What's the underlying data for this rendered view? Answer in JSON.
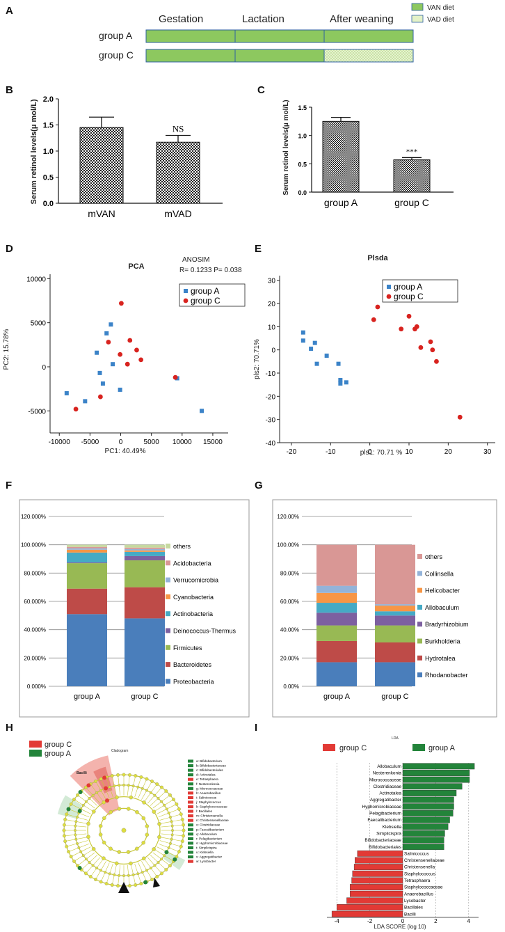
{
  "panel_labels": [
    "A",
    "B",
    "C",
    "D",
    "E",
    "F",
    "G",
    "H",
    "I"
  ],
  "colors": {
    "van": "#8dc85f",
    "vad": "#e4f2c8",
    "border": "#2d5fa0",
    "groupA_marker": "#3b83c8",
    "groupC_marker": "#d8231f",
    "lefse_red": "#e23a35",
    "lefse_green": "#23843a",
    "proteobacteria": "#4a7ebb",
    "bacteroidetes": "#be4b48",
    "firmicutes": "#98b954",
    "deinococcus": "#7d60a0",
    "actinobacteria": "#46aac5",
    "cyanobacteria": "#f79646",
    "verrucomicrobia": "#93b3d9",
    "acidobacteria": "#d99795",
    "others_f": "#c6d9a0",
    "cladogram_node": "#dede40"
  },
  "panel_a": {
    "phases": [
      "Gestation",
      "Lactation",
      "After weaning"
    ],
    "rows": [
      {
        "label": "group A",
        "diets": [
          "VAN",
          "VAN",
          "VAN"
        ]
      },
      {
        "label": "group C",
        "diets": [
          "VAN",
          "VAN",
          "VAD"
        ]
      }
    ],
    "legend": [
      "VAN diet",
      "VAD diet"
    ]
  },
  "chart_data": [
    {
      "id": "B",
      "type": "bar",
      "categories": [
        "mVAN",
        "mVAD"
      ],
      "values": [
        1.45,
        1.17
      ],
      "errors": [
        0.2,
        0.13
      ],
      "annotations": [
        "",
        "NS"
      ],
      "ylabel": "Serum retinol levels(μ mol/L)",
      "yticks": [
        "0.0",
        "0.5",
        "1.0",
        "1.5",
        "2.0"
      ],
      "ylim": [
        0,
        2.0
      ]
    },
    {
      "id": "C",
      "type": "bar",
      "categories": [
        "group A",
        "group C"
      ],
      "values": [
        1.25,
        0.57
      ],
      "errors": [
        0.07,
        0.04
      ],
      "annotations": [
        "",
        "***"
      ],
      "ylabel": "Serum retinol levels(μ mol/L)",
      "yticks": [
        "0.0",
        "0.5",
        "1.0",
        "1.5"
      ],
      "ylim": [
        0,
        1.5
      ]
    },
    {
      "id": "D",
      "type": "scatter",
      "title": "PCA",
      "annotation": [
        "ANOSIM",
        "R= 0.1233  P= 0.038"
      ],
      "xlabel": "PC1: 40.49%",
      "ylabel": "PC2: 15.78%",
      "xticks": [
        "-10000",
        "-5000",
        "0",
        "5000",
        "10000",
        "15000"
      ],
      "yticks": [
        "-5000",
        "0",
        "5000",
        "10000"
      ],
      "xlim": [
        -11500,
        17500
      ],
      "ylim": [
        -7500,
        10500
      ],
      "legend": [
        "group A",
        "group C"
      ],
      "series": [
        {
          "name": "group A",
          "points": [
            [
              -8800,
              -3000
            ],
            [
              -5800,
              -3900
            ],
            [
              -3900,
              1600
            ],
            [
              -3400,
              -700
            ],
            [
              -2900,
              -1900
            ],
            [
              -2300,
              3800
            ],
            [
              -1600,
              4800
            ],
            [
              -1300,
              300
            ],
            [
              -100,
              -2600
            ],
            [
              9200,
              -1300
            ],
            [
              13200,
              -5000
            ]
          ]
        },
        {
          "name": "group C",
          "points": [
            [
              -7300,
              -4800
            ],
            [
              -3300,
              -3400
            ],
            [
              -2000,
              2800
            ],
            [
              -100,
              1400
            ],
            [
              100,
              7200
            ],
            [
              1100,
              300
            ],
            [
              1500,
              3000
            ],
            [
              2600,
              1900
            ],
            [
              3300,
              800
            ],
            [
              8900,
              -1200
            ]
          ]
        }
      ]
    },
    {
      "id": "E",
      "type": "scatter",
      "title": "Plsda",
      "xlabel": "pls1: 70.71 %",
      "ylabel": "pls2: 70.71%",
      "xticks": [
        "-20",
        "-10",
        "0",
        "10",
        "20",
        "30"
      ],
      "yticks": [
        "-40",
        "-30",
        "-20",
        "-10",
        "0",
        "10",
        "20",
        "30"
      ],
      "xlim": [
        -23,
        32
      ],
      "ylim": [
        -40,
        32
      ],
      "legend": [
        "group A",
        "group C"
      ],
      "series": [
        {
          "name": "group A",
          "points": [
            [
              -17,
              7.5
            ],
            [
              -17,
              4
            ],
            [
              -15,
              0.5
            ],
            [
              -14,
              3
            ],
            [
              -13.5,
              -6
            ],
            [
              -11,
              -2.5
            ],
            [
              -8,
              -6
            ],
            [
              -7.5,
              -13
            ],
            [
              -7.5,
              -14.5
            ],
            [
              -6,
              -14
            ]
          ]
        },
        {
          "name": "group C",
          "points": [
            [
              1,
              13
            ],
            [
              2,
              18.5
            ],
            [
              8,
              9
            ],
            [
              10,
              14.5
            ],
            [
              11.5,
              9
            ],
            [
              12,
              10
            ],
            [
              13,
              1
            ],
            [
              15.5,
              3.5
            ],
            [
              16,
              0
            ],
            [
              17,
              -5
            ],
            [
              23,
              -29
            ]
          ]
        }
      ]
    },
    {
      "id": "F",
      "type": "bar",
      "stacked": true,
      "categories": [
        "group A",
        "group C"
      ],
      "yticks": [
        "0.000%",
        "20.000%",
        "40.000%",
        "60.000%",
        "80.000%",
        "100.000%",
        "120.000%"
      ],
      "ylim": [
        0,
        120
      ],
      "legend": [
        "others",
        "Acidobacteria",
        "Verrucomicrobia",
        "Cyanobacteria",
        "Actinobacteria",
        "Deinococcus-Thermus",
        "Firmicutes",
        "Bacteroidetes",
        "Proteobacteria"
      ],
      "series": [
        {
          "name": "Proteobacteria",
          "values": [
            51,
            48
          ]
        },
        {
          "name": "Bacteroidetes",
          "values": [
            18,
            22
          ]
        },
        {
          "name": "Firmicutes",
          "values": [
            18,
            19
          ]
        },
        {
          "name": "Deinococcus-Thermus",
          "values": [
            0.5,
            3
          ]
        },
        {
          "name": "Actinobacteria",
          "values": [
            7,
            3
          ]
        },
        {
          "name": "Cyanobacteria",
          "values": [
            2,
            1
          ]
        },
        {
          "name": "Verrucomicrobia",
          "values": [
            1,
            1
          ]
        },
        {
          "name": "Acidobacteria",
          "values": [
            1,
            1
          ]
        },
        {
          "name": "others",
          "values": [
            1.5,
            2
          ]
        }
      ]
    },
    {
      "id": "G",
      "type": "bar",
      "stacked": true,
      "categories": [
        "group A",
        "group C"
      ],
      "yticks": [
        "0.00%",
        "20.00%",
        "40.00%",
        "60.00%",
        "80.00%",
        "100.00%",
        "120.00%"
      ],
      "ylim": [
        0,
        120
      ],
      "legend": [
        "others",
        "Collinsella",
        "Helicobacter",
        "Allobaculum",
        "Bradyrhizobium",
        "Burkholderia",
        "Hydrotalea",
        "Rhodanobacter"
      ],
      "series": [
        {
          "name": "Rhodanobacter",
          "values": [
            17,
            17
          ]
        },
        {
          "name": "Hydrotalea",
          "values": [
            15,
            14
          ]
        },
        {
          "name": "Burkholderia",
          "values": [
            11,
            12
          ]
        },
        {
          "name": "Bradyrhizobium",
          "values": [
            9,
            7
          ]
        },
        {
          "name": "Allobaculum",
          "values": [
            7,
            3
          ]
        },
        {
          "name": "Helicobacter",
          "values": [
            7,
            4
          ]
        },
        {
          "name": "Collinsella",
          "values": [
            5,
            1
          ]
        },
        {
          "name": "others",
          "values": [
            29,
            42
          ]
        }
      ]
    },
    {
      "id": "I",
      "type": "bar",
      "orientation": "horizontal",
      "title": "LDA",
      "xlabel": "LDA SCORE (log 10)",
      "xticks": [
        "-4",
        "-2",
        "0",
        "2",
        "4"
      ],
      "xlim": [
        -4.6,
        4.6
      ],
      "legend": [
        "group C",
        "group A"
      ],
      "categories": [
        "Allobaculum",
        "Nesterenkonia",
        "Micrococcaceae",
        "Clostridiaceae",
        "Actinotalea",
        "Aggregatibacter",
        "Hyphomicrobiaceae",
        "Pelagibacterium",
        "Faecalibacterium",
        "Klebsiella",
        "Simplicispira",
        "Bifidobacteriaceae",
        "Bifidobacteriales",
        "Salinicoccus",
        "Christensenellaceae",
        "Christensenella",
        "Staphylococcus",
        "Tetrasphaera",
        "Staphylococcaceae",
        "Anaerobacillus",
        "Lysobacter",
        "Bacillales",
        "Bacilli"
      ],
      "values": [
        4.35,
        4.05,
        4.05,
        3.6,
        3.25,
        3.1,
        3.1,
        3.05,
        2.85,
        2.75,
        2.55,
        2.5,
        2.5,
        -2.75,
        -2.9,
        -2.95,
        -3.05,
        -3.1,
        -3.2,
        -3.2,
        -3.4,
        -4.0,
        -4.3
      ]
    }
  ],
  "panel_h": {
    "title": "Cladogram",
    "legend": [
      "group C",
      "group A"
    ],
    "key": [
      {
        "text": "a: Bifidobacterium",
        "group": "A"
      },
      {
        "text": "b: Bifidobacteriaceae",
        "group": "A"
      },
      {
        "text": "c: Bifidobacteriales",
        "group": "A"
      },
      {
        "text": "d: Actinotalea",
        "group": "A"
      },
      {
        "text": "e: Tetrasphaera",
        "group": "C"
      },
      {
        "text": "f: Nesterenkonia",
        "group": "A"
      },
      {
        "text": "g: Micrococcaceae",
        "group": "A"
      },
      {
        "text": "h: Anaerobacillus",
        "group": "C"
      },
      {
        "text": "i: Salinicoccus",
        "group": "C"
      },
      {
        "text": "j: Staphylococcus",
        "group": "C"
      },
      {
        "text": "k: Staphylococcaceae",
        "group": "C"
      },
      {
        "text": "l: Bacillales",
        "group": "C"
      },
      {
        "text": "m: Christensenella",
        "group": "C"
      },
      {
        "text": "n: Christensenellaceae",
        "group": "C"
      },
      {
        "text": "o: Clostridiaceae",
        "group": "A"
      },
      {
        "text": "p: Faecalibacterium",
        "group": "A"
      },
      {
        "text": "q: Allobaculum",
        "group": "A"
      },
      {
        "text": "r: Pelagibacterium",
        "group": "A"
      },
      {
        "text": "s: Hyphomicrobiaceae",
        "group": "A"
      },
      {
        "text": "t: Simplicispira",
        "group": "A"
      },
      {
        "text": "u: Klebsiella",
        "group": "A"
      },
      {
        "text": "v: Aggregatibacter",
        "group": "A"
      },
      {
        "text": "w: Lysobacter",
        "group": "C"
      }
    ],
    "clade_label": "Bacilli"
  }
}
